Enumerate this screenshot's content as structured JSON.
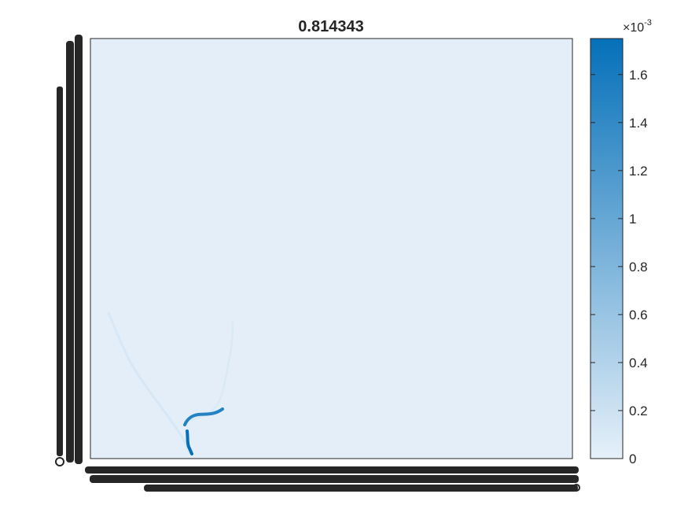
{
  "chart_data": {
    "type": "heatmap",
    "title": "0.814343",
    "colormap": [
      "#e6f0f9",
      "#0570b9"
    ],
    "background_color": "#e3eef8",
    "colorbar": {
      "multiplier_base": "×10",
      "multiplier_exp": "-3",
      "range": [
        0,
        1.75
      ],
      "ticks": [
        0,
        0.2,
        0.4,
        0.6,
        0.8,
        1,
        1.2,
        1.4,
        1.6
      ],
      "tick_labels": [
        "0",
        "0.2",
        "0.4",
        "0.6",
        "0.8",
        "1",
        "1.2",
        "1.4",
        "1.6"
      ]
    },
    "x_ticks_unreadable": true,
    "y_ticks_unreadable": true,
    "features": [
      {
        "name": "faint-trail-left",
        "intensity": 0.12
      },
      {
        "name": "faint-trail-right",
        "intensity": 0.1
      },
      {
        "name": "upper-hook",
        "intensity": 1.5
      },
      {
        "name": "lower-streak",
        "intensity": 1.75
      }
    ]
  }
}
